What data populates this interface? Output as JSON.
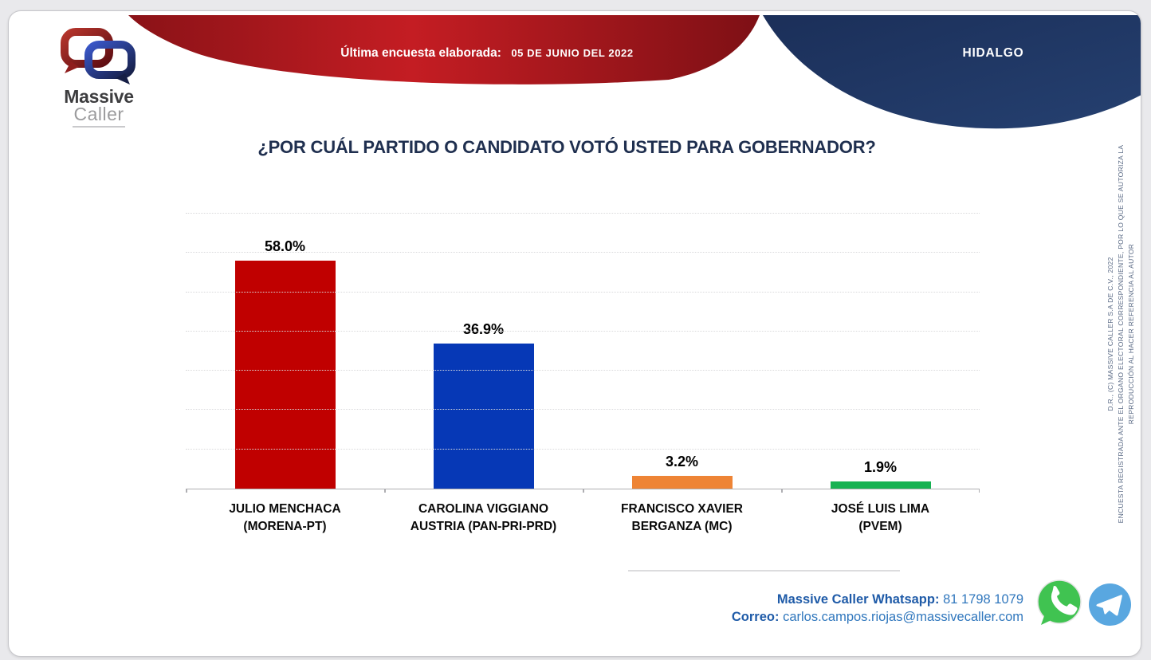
{
  "header": {
    "banner_label": "Última encuesta elaborada:",
    "banner_date": "05 DE JUNIO DEL 2022",
    "region": "HIDALGO",
    "logo_line1": "Massive",
    "logo_line2": "Caller"
  },
  "title": "¿POR CUÁL PARTIDO O CANDIDATO VOTÓ USTED PARA GOBERNADOR?",
  "chart_data": {
    "type": "bar",
    "title": "¿POR CUÁL PARTIDO O CANDIDATO VOTÓ USTED PARA GOBERNADOR?",
    "ylim": [
      0,
      70
    ],
    "grid_step": 10,
    "grid": true,
    "legend": false,
    "value_labels": true,
    "categories": [
      "JULIO MENCHACA (MORENA-PT)",
      "CAROLINA VIGGIANO AUSTRIA (PAN-PRI-PRD)",
      "FRANCISCO XAVIER BERGANZA (MC)",
      "JOSÉ LUIS LIMA (PVEM)"
    ],
    "bars": [
      {
        "label_lines": [
          "JULIO MENCHACA",
          "(MORENA-PT)"
        ],
        "value": 58.0,
        "display": "58.0%",
        "color": "#c00000",
        "name": "bar-julio-menchaca"
      },
      {
        "label_lines": [
          "CAROLINA VIGGIANO",
          "AUSTRIA (PAN-PRI-PRD)"
        ],
        "value": 36.9,
        "display": "36.9%",
        "color": "#0638b6",
        "name": "bar-carolina-viggiano"
      },
      {
        "label_lines": [
          "FRANCISCO XAVIER",
          "BERGANZA (MC)"
        ],
        "value": 3.2,
        "display": "3.2%",
        "color": "#ee8435",
        "name": "bar-francisco-berganza"
      },
      {
        "label_lines": [
          "JOSÉ LUIS LIMA",
          "(PVEM)"
        ],
        "value": 1.9,
        "display": "1.9%",
        "color": "#17b252",
        "name": "bar-jose-luis-lima"
      }
    ]
  },
  "disclaimer_lines": [
    "D.R., (C) MASSIVE CALLER S.A DE C.V., 2022",
    "ENCUESTA REGISTRADA ANTE EL ORGANO ELECTORAL CORRESPONDIENTE, POR LO QUE SE AUTORIZA LA",
    "REPRODUCCIÓN AL HACER REFERENCIA AL AUTOR"
  ],
  "footer": {
    "whatsapp_label": "Massive Caller Whatsapp:",
    "whatsapp_number": "81 1798 1079",
    "email_label": "Correo:",
    "email": "carlos.campos.riojas@massivecaller.com"
  },
  "icons": {
    "whatsapp": "whatsapp-icon",
    "telegram": "telegram-icon"
  },
  "colors": {
    "banner_red": "#c1191f",
    "banner_navy": "#1e3461",
    "title_navy": "#1f2f4f",
    "link_blue": "#3077bd",
    "whatsapp_green": "#40c351",
    "telegram_blue": "#59a7e0",
    "grid_gray": "#d9d9db"
  }
}
